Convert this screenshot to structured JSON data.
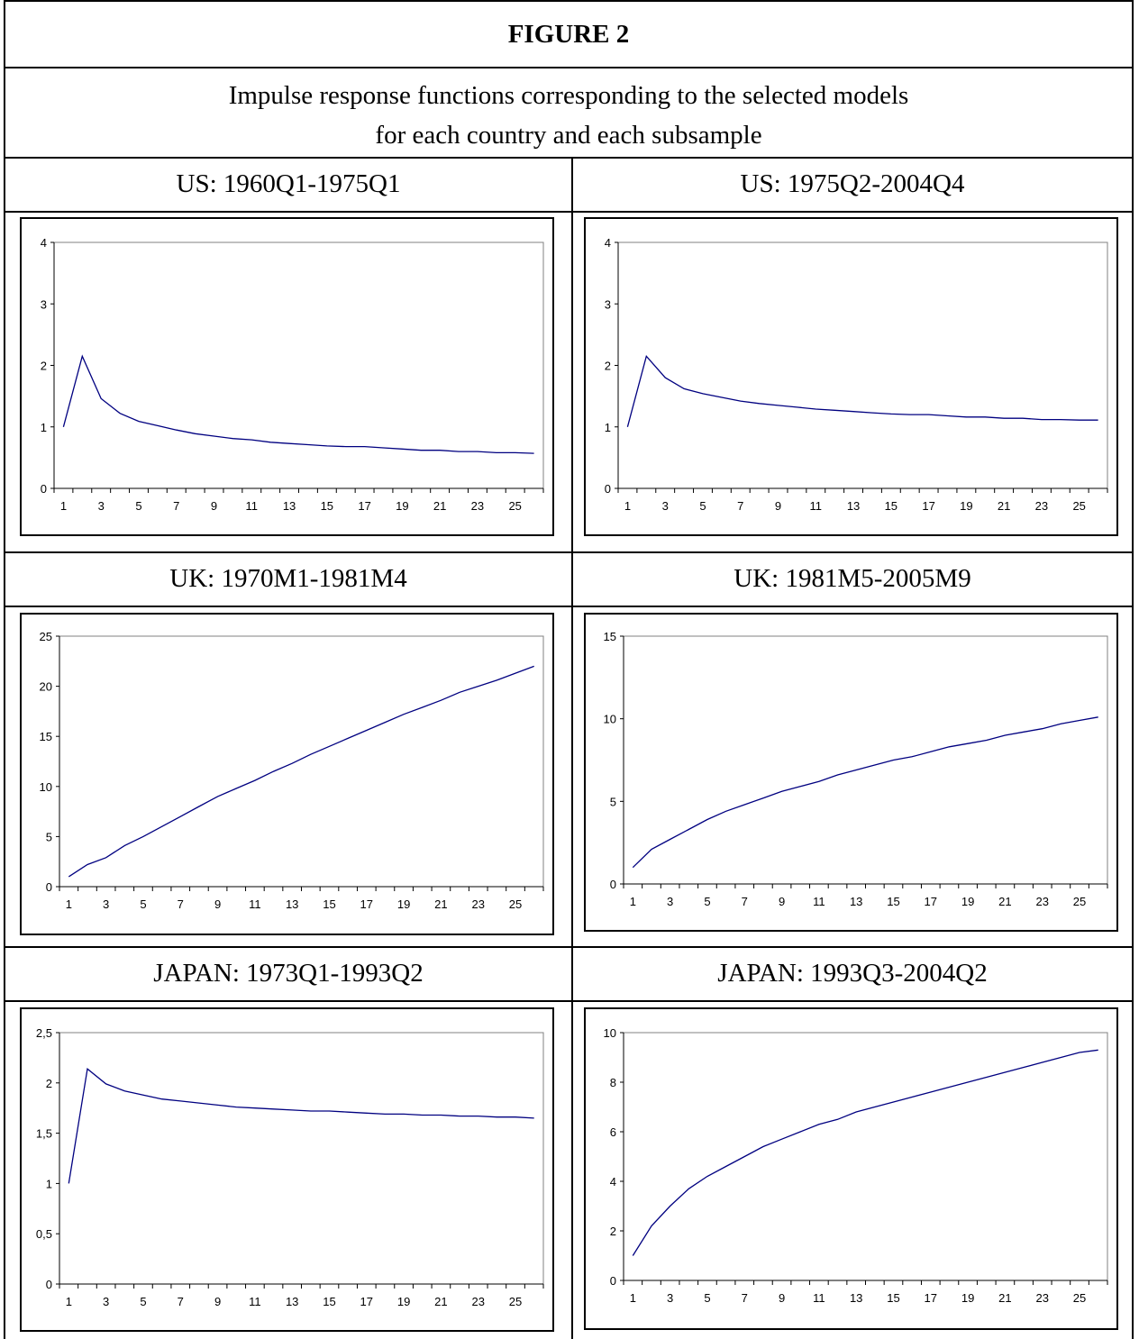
{
  "figure": {
    "title": "FIGURE 2",
    "caption_line1": "Impulse response functions corresponding to the selected models",
    "caption_line2": "for each country and each subsample"
  },
  "colors": {
    "line": "#000080",
    "border": "#000000"
  },
  "chart_data": [
    {
      "type": "line",
      "title": "US: 1960Q1-1975Q1",
      "x": [
        1,
        2,
        3,
        4,
        5,
        6,
        7,
        8,
        9,
        10,
        11,
        12,
        13,
        14,
        15,
        16,
        17,
        18,
        19,
        20,
        21,
        22,
        23,
        24,
        25,
        26
      ],
      "values": [
        1.0,
        2.15,
        1.46,
        1.22,
        1.09,
        1.02,
        0.95,
        0.89,
        0.85,
        0.81,
        0.79,
        0.75,
        0.73,
        0.71,
        0.69,
        0.68,
        0.68,
        0.66,
        0.64,
        0.62,
        0.62,
        0.6,
        0.6,
        0.58,
        0.58,
        0.57
      ],
      "ylim": [
        0,
        4
      ],
      "yticks": [
        "0",
        "1",
        "2",
        "3",
        "4"
      ],
      "xticks": [
        "1",
        "3",
        "5",
        "7",
        "9",
        "11",
        "13",
        "15",
        "17",
        "19",
        "21",
        "23",
        "25"
      ]
    },
    {
      "type": "line",
      "title": "US: 1975Q2-2004Q4",
      "x": [
        1,
        2,
        3,
        4,
        5,
        6,
        7,
        8,
        9,
        10,
        11,
        12,
        13,
        14,
        15,
        16,
        17,
        18,
        19,
        20,
        21,
        22,
        23,
        24,
        25,
        26
      ],
      "values": [
        1.0,
        2.15,
        1.8,
        1.62,
        1.54,
        1.48,
        1.42,
        1.38,
        1.35,
        1.32,
        1.29,
        1.27,
        1.25,
        1.23,
        1.21,
        1.2,
        1.2,
        1.18,
        1.16,
        1.16,
        1.14,
        1.14,
        1.12,
        1.12,
        1.11,
        1.11
      ],
      "ylim": [
        0,
        4
      ],
      "yticks": [
        "0",
        "1",
        "2",
        "3",
        "4"
      ],
      "xticks": [
        "1",
        "3",
        "5",
        "7",
        "9",
        "11",
        "13",
        "15",
        "17",
        "19",
        "21",
        "23",
        "25"
      ]
    },
    {
      "type": "line",
      "title": "UK: 1970M1-1981M4",
      "x": [
        1,
        2,
        3,
        4,
        5,
        6,
        7,
        8,
        9,
        10,
        11,
        12,
        13,
        14,
        15,
        16,
        17,
        18,
        19,
        20,
        21,
        22,
        23,
        24,
        25,
        26
      ],
      "values": [
        1.0,
        2.2,
        2.9,
        4.1,
        5.0,
        6.0,
        7.0,
        8.0,
        9.0,
        9.8,
        10.6,
        11.5,
        12.3,
        13.2,
        14.0,
        14.8,
        15.6,
        16.4,
        17.2,
        17.9,
        18.6,
        19.4,
        20.0,
        20.6,
        21.3,
        22.0
      ],
      "ylim": [
        0,
        25
      ],
      "yticks": [
        "0",
        "5",
        "10",
        "15",
        "20",
        "25"
      ],
      "xticks": [
        "1",
        "3",
        "5",
        "7",
        "9",
        "11",
        "13",
        "15",
        "17",
        "19",
        "21",
        "23",
        "25"
      ]
    },
    {
      "type": "line",
      "title": "UK: 1981M5-2005M9",
      "x": [
        1,
        2,
        3,
        4,
        5,
        6,
        7,
        8,
        9,
        10,
        11,
        12,
        13,
        14,
        15,
        16,
        17,
        18,
        19,
        20,
        21,
        22,
        23,
        24,
        25,
        26
      ],
      "values": [
        1.0,
        2.1,
        2.7,
        3.3,
        3.9,
        4.4,
        4.8,
        5.2,
        5.6,
        5.9,
        6.2,
        6.6,
        6.9,
        7.2,
        7.5,
        7.7,
        8.0,
        8.3,
        8.5,
        8.7,
        9.0,
        9.2,
        9.4,
        9.7,
        9.9,
        10.1
      ],
      "ylim": [
        0,
        15
      ],
      "yticks": [
        "0",
        "5",
        "10",
        "15"
      ],
      "xticks": [
        "1",
        "3",
        "5",
        "7",
        "9",
        "11",
        "13",
        "15",
        "17",
        "19",
        "21",
        "23",
        "25"
      ]
    },
    {
      "type": "line",
      "title": "JAPAN: 1973Q1-1993Q2",
      "x": [
        1,
        2,
        3,
        4,
        5,
        6,
        7,
        8,
        9,
        10,
        11,
        12,
        13,
        14,
        15,
        16,
        17,
        18,
        19,
        20,
        21,
        22,
        23,
        24,
        25,
        26
      ],
      "values": [
        1.0,
        2.14,
        1.99,
        1.92,
        1.88,
        1.84,
        1.82,
        1.8,
        1.78,
        1.76,
        1.75,
        1.74,
        1.73,
        1.72,
        1.72,
        1.71,
        1.7,
        1.69,
        1.69,
        1.68,
        1.68,
        1.67,
        1.67,
        1.66,
        1.66,
        1.65
      ],
      "ylim": [
        0,
        2.5
      ],
      "yticks": [
        "0",
        "0,5",
        "1",
        "1,5",
        "2",
        "2,5"
      ],
      "xticks": [
        "1",
        "3",
        "5",
        "7",
        "9",
        "11",
        "13",
        "15",
        "17",
        "19",
        "21",
        "23",
        "25"
      ]
    },
    {
      "type": "line",
      "title": "JAPAN: 1993Q3-2004Q2",
      "x": [
        1,
        2,
        3,
        4,
        5,
        6,
        7,
        8,
        9,
        10,
        11,
        12,
        13,
        14,
        15,
        16,
        17,
        18,
        19,
        20,
        21,
        22,
        23,
        24,
        25,
        26
      ],
      "values": [
        1.0,
        2.2,
        3.0,
        3.7,
        4.2,
        4.6,
        5.0,
        5.4,
        5.7,
        6.0,
        6.3,
        6.5,
        6.8,
        7.0,
        7.2,
        7.4,
        7.6,
        7.8,
        8.0,
        8.2,
        8.4,
        8.6,
        8.8,
        9.0,
        9.2,
        9.3
      ],
      "ylim": [
        0,
        10
      ],
      "yticks": [
        "0",
        "2",
        "4",
        "6",
        "8",
        "10"
      ],
      "xticks": [
        "1",
        "3",
        "5",
        "7",
        "9",
        "11",
        "13",
        "15",
        "17",
        "19",
        "21",
        "23",
        "25"
      ]
    }
  ]
}
